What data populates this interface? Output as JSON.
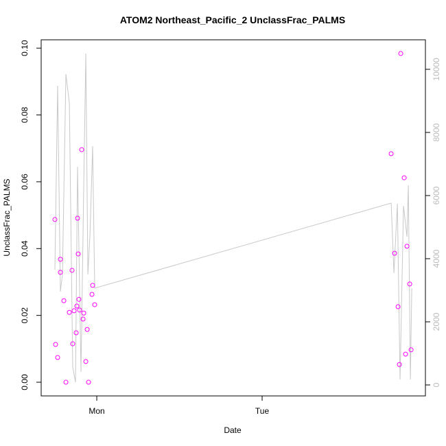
{
  "chart_data": {
    "type": "line_scatter",
    "title": "ATOM2 Northeast_Pacific_2 UnclassFrac_PALMS",
    "x_label": "Date",
    "y_label": "UnclassFrac_PALMS",
    "xlim": [
      -8.07,
      47.7
    ],
    "xticks": [
      {
        "value": 0,
        "label": "Mon"
      },
      {
        "value": 24,
        "label": "Tue"
      }
    ],
    "ylim": [
      -0.0041,
      0.1025
    ],
    "yticks": [
      {
        "value": 0,
        "label": "0.00"
      },
      {
        "value": 0.02,
        "label": "0.02"
      },
      {
        "value": 0.04,
        "label": "0.04"
      },
      {
        "value": 0.06,
        "label": "0.06"
      },
      {
        "value": 0.08,
        "label": "0.08"
      },
      {
        "value": 0.1,
        "label": "0.10"
      }
    ],
    "y2lim": [
      -348,
      10935
    ],
    "y2ticks": [
      0,
      2000,
      4000,
      6000,
      8000,
      10000
    ],
    "series": [
      {
        "kind": "line",
        "axis": "y2",
        "color": "#c8c8c8",
        "x": [
          -6.08,
          -5.68,
          -5.28,
          -4.98,
          -4.48,
          -3.98,
          -3.49,
          -3.09,
          -2.79,
          -2.29,
          -1.89,
          -1.59,
          -1.29,
          -0.99,
          -0.6,
          -0.3,
          42.73,
          43.13,
          43.63,
          44.02,
          44.52,
          45.02,
          45.22,
          45.52,
          45.72
        ],
        "values": [
          3652,
          9478,
          2957,
          3500,
          9848,
          8935,
          565,
          87,
          6913,
          413,
          6326,
          10500,
          3500,
          4739,
          7565,
          3065,
          5761,
          3543,
          5739,
          174,
          5674,
          4696,
          6326,
          174,
          3065
        ]
      },
      {
        "kind": "scatter",
        "axis": "y",
        "color": "#ff00ff",
        "x": [
          -6.08,
          -5.98,
          -5.68,
          -5.28,
          -5.28,
          -4.78,
          -4.48,
          -3.98,
          -3.59,
          -3.49,
          -3.29,
          -2.99,
          -2.89,
          -2.79,
          -2.69,
          -2.59,
          -2.49,
          -2.19,
          -1.99,
          -1.89,
          -1.59,
          -1.39,
          -1.19,
          -0.7,
          -0.6,
          -0.3,
          42.73,
          43.23,
          43.73,
          43.92,
          44.12,
          44.62,
          44.82,
          45.02,
          45.42,
          45.62
        ],
        "values": [
          0.0487,
          0.0113,
          0.0074,
          0.0368,
          0.0329,
          0.0244,
          0.0,
          0.0209,
          0.0335,
          0.0115,
          0.0214,
          0.0148,
          0.0228,
          0.0491,
          0.0384,
          0.0248,
          0.0216,
          0.0696,
          0.0189,
          0.0207,
          0.0062,
          0.0158,
          0.0,
          0.0263,
          0.029,
          0.0232,
          0.0684,
          0.0386,
          0.0226,
          0.0053,
          0.0984,
          0.0612,
          0.0084,
          0.0407,
          0.0294,
          0.0097
        ]
      }
    ]
  }
}
